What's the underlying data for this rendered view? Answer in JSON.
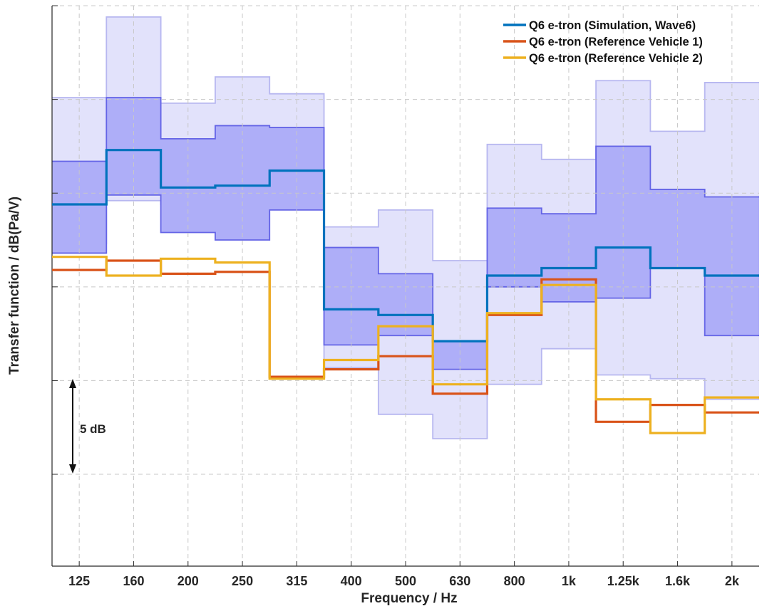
{
  "chart_data": {
    "type": "line",
    "subtype": "stepped",
    "title": "",
    "xlabel": "Frequency / Hz",
    "ylabel": "Transfer function / dB(Pa/V)",
    "categories": [
      "125",
      "160",
      "200",
      "250",
      "315",
      "400",
      "500",
      "630",
      "800",
      "1k",
      "1.25k",
      "1.6k",
      "2k"
    ],
    "y_unit": "dB (relative, y-tick labels not shown)",
    "y_tick_spacing_db": 5,
    "ylim": [
      -19.9,
      10.0
    ],
    "grid": true,
    "legend_position": "top-right",
    "bands": [
      {
        "name": "outer",
        "color": "#e2e2fb",
        "edge_color": "#b7b7f0",
        "points": [
          [
            115,
            5.1,
            -2.7
          ],
          [
            150,
            9.4,
            -0.4
          ],
          [
            190,
            4.8,
            -0.6
          ],
          [
            230,
            6.2,
            0.6
          ],
          [
            290,
            5.3,
            1.6
          ],
          [
            370,
            -1.8,
            -9.3
          ],
          [
            470,
            -0.9,
            -11.8
          ],
          [
            550,
            -3.6,
            -13.1
          ],
          [
            680,
            2.6,
            -10.2
          ],
          [
            840,
            1.8,
            -8.3
          ],
          [
            1070,
            6.0,
            -9.7
          ],
          [
            1380,
            3.3,
            -9.9
          ],
          [
            1730,
            5.9,
            -11.0
          ]
        ]
      },
      {
        "name": "inner",
        "color": "#aeaef8",
        "edge_color": "#6464e6",
        "points": [
          [
            115,
            1.7,
            -3.2
          ],
          [
            150,
            5.1,
            -0.1
          ],
          [
            190,
            2.9,
            -2.1
          ],
          [
            230,
            3.6,
            -2.5
          ],
          [
            290,
            3.5,
            -0.9
          ],
          [
            370,
            -2.9,
            -8.1
          ],
          [
            470,
            -4.3,
            -7.6
          ],
          [
            550,
            -7.9,
            -9.4
          ],
          [
            680,
            -0.8,
            -5.0
          ],
          [
            840,
            -1.1,
            -5.8
          ],
          [
            1070,
            2.5,
            -5.6
          ],
          [
            1380,
            0.2,
            -4.0
          ],
          [
            1730,
            -0.2,
            -7.6
          ]
        ]
      }
    ],
    "series": [
      {
        "name": "Q6 e-tron (Simulation, Wave6)",
        "color": "#0072bd",
        "values": [
          -0.6,
          2.3,
          0.3,
          0.4,
          1.2,
          -6.2,
          -6.5,
          -7.9,
          -4.4,
          -4.0,
          -2.9,
          -4.0,
          -4.4
        ]
      },
      {
        "name": "Q6 e-tron (Reference Vehicle 1)",
        "color": "#d95319",
        "values": [
          -4.1,
          -3.6,
          -4.3,
          -4.2,
          -9.8,
          -9.4,
          -8.7,
          -10.7,
          -6.5,
          -4.6,
          -12.2,
          -11.3,
          -11.7
        ]
      },
      {
        "name": "Q6 e-tron (Reference Vehicle 2)",
        "color": "#edb120",
        "values": [
          -3.4,
          -4.4,
          -3.5,
          -3.7,
          -9.9,
          -8.9,
          -7.1,
          -10.2,
          -6.4,
          -4.9,
          -11.0,
          -12.8,
          -10.9
        ]
      }
    ],
    "annotation": {
      "label": "5 dB",
      "span_db": 5
    }
  }
}
